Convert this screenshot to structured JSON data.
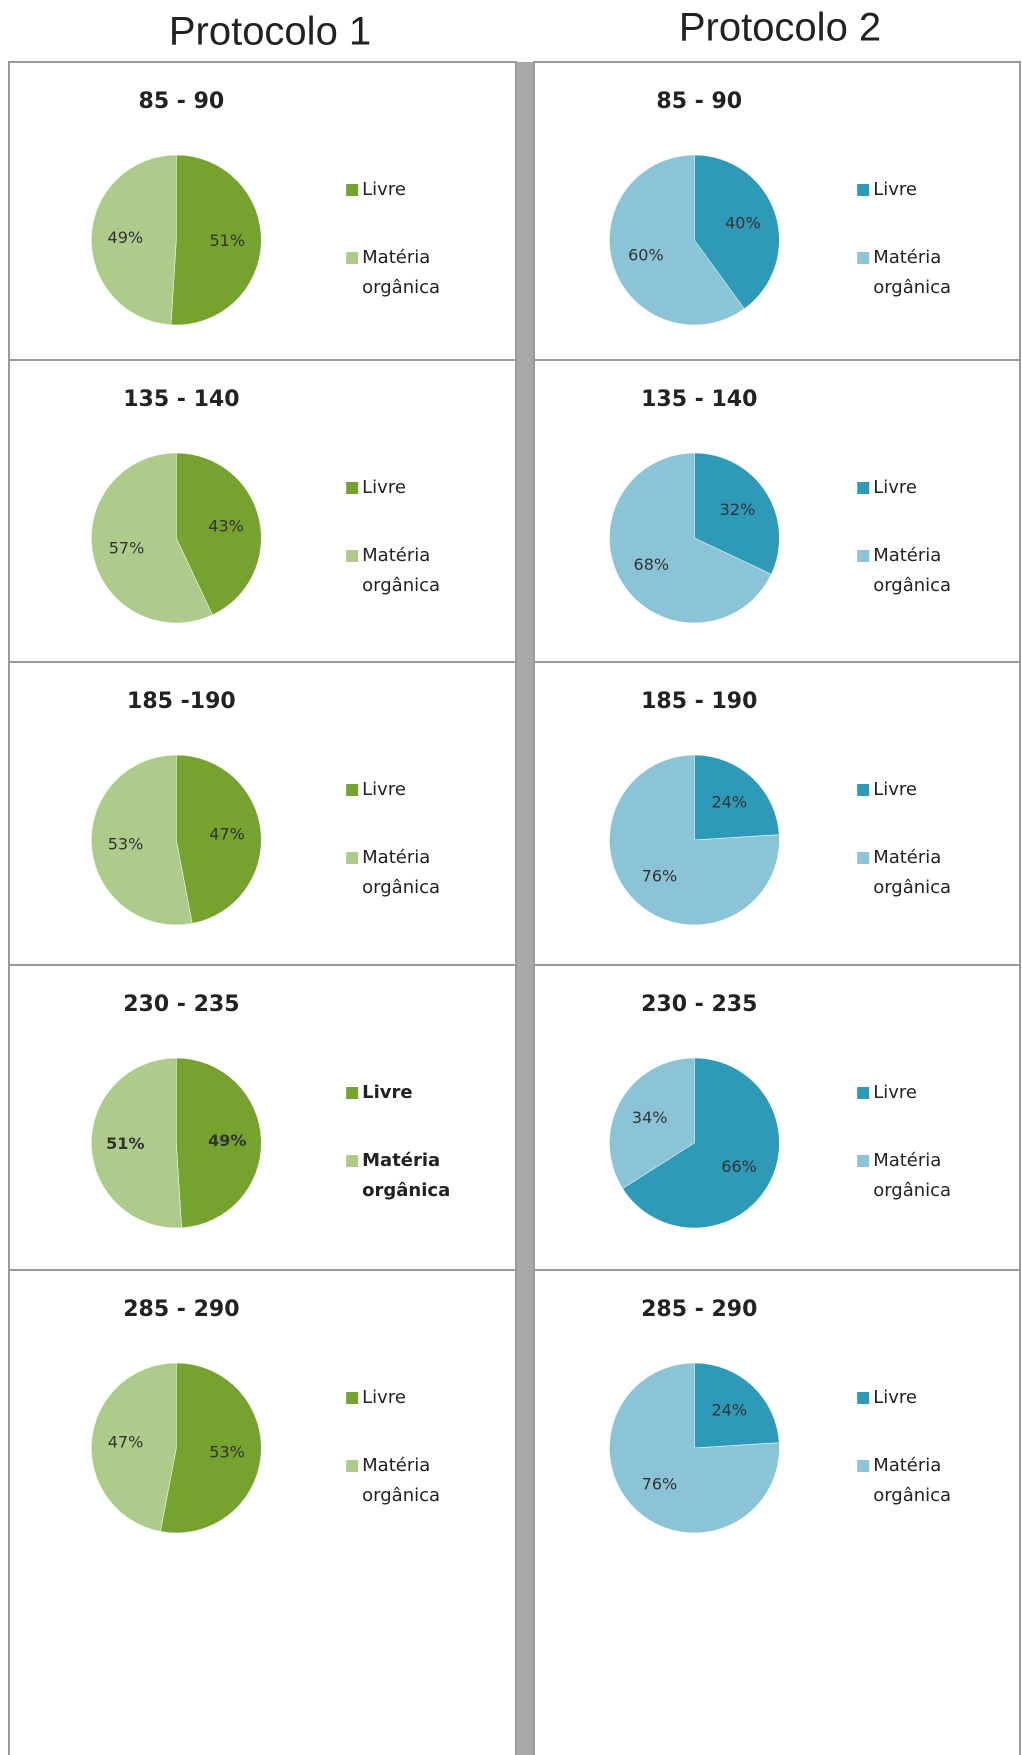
{
  "headers": [
    "Protocolo 1",
    "Protocolo 2"
  ],
  "chart_data": [
    {
      "type": "pie",
      "title": "85 - 90",
      "categories": [
        "Livre",
        "Matéria orgânica"
      ],
      "values": [
        51,
        49
      ],
      "value_labels": [
        "51%",
        "49%"
      ],
      "colors": [
        "#78a22f",
        "#afcb8c"
      ]
    },
    {
      "type": "pie",
      "title": "135 - 140",
      "categories": [
        "Livre",
        "Matéria orgânica"
      ],
      "values": [
        43,
        57
      ],
      "value_labels": [
        "43%",
        "57%"
      ],
      "colors": [
        "#78a22f",
        "#afcb8c"
      ]
    },
    {
      "type": "pie",
      "title": "185 -190",
      "categories": [
        "Livre",
        "Matéria orgânica"
      ],
      "values": [
        47,
        53
      ],
      "value_labels": [
        "47%",
        "53%"
      ],
      "colors": [
        "#78a22f",
        "#afcb8c"
      ]
    },
    {
      "type": "pie",
      "title": "230 - 235",
      "categories": [
        "Livre",
        "Matéria orgânica"
      ],
      "values": [
        49,
        51
      ],
      "value_labels": [
        "49%",
        "51%"
      ],
      "colors": [
        "#78a22f",
        "#afcb8c"
      ],
      "bold": true
    },
    {
      "type": "pie",
      "title": "285 - 290",
      "categories": [
        "Livre",
        "Matéria orgânica"
      ],
      "values": [
        53,
        47
      ],
      "value_labels": [
        "53%",
        "47%"
      ],
      "colors": [
        "#78a22f",
        "#afcb8c"
      ]
    },
    {
      "type": "pie",
      "title": "85 - 90",
      "categories": [
        "Livre",
        "Matéria orgânica"
      ],
      "values": [
        40,
        60
      ],
      "value_labels": [
        "40%",
        "60%"
      ],
      "colors": [
        "#2e9ab8",
        "#8cc4d7"
      ]
    },
    {
      "type": "pie",
      "title": "135 - 140",
      "categories": [
        "Livre",
        "Matéria orgânica"
      ],
      "values": [
        32,
        68
      ],
      "value_labels": [
        "32%",
        "68%"
      ],
      "colors": [
        "#2e9ab8",
        "#8cc4d7"
      ]
    },
    {
      "type": "pie",
      "title": "185 - 190",
      "categories": [
        "Livre",
        "Matéria orgânica"
      ],
      "values": [
        24,
        76
      ],
      "value_labels": [
        "24%",
        "76%"
      ],
      "colors": [
        "#2e9ab8",
        "#8cc4d7"
      ]
    },
    {
      "type": "pie",
      "title": "230 - 235",
      "categories": [
        "Livre",
        "Matéria orgânica"
      ],
      "values": [
        66,
        34
      ],
      "value_labels": [
        "66%",
        "34%"
      ],
      "colors": [
        "#2e9ab8",
        "#8cc4d7"
      ]
    },
    {
      "type": "pie",
      "title": "285 - 290",
      "categories": [
        "Livre",
        "Matéria orgânica"
      ],
      "values": [
        24,
        76
      ],
      "value_labels": [
        "24%",
        "76%"
      ],
      "colors": [
        "#2e9ab8",
        "#8cc4d7"
      ]
    }
  ]
}
